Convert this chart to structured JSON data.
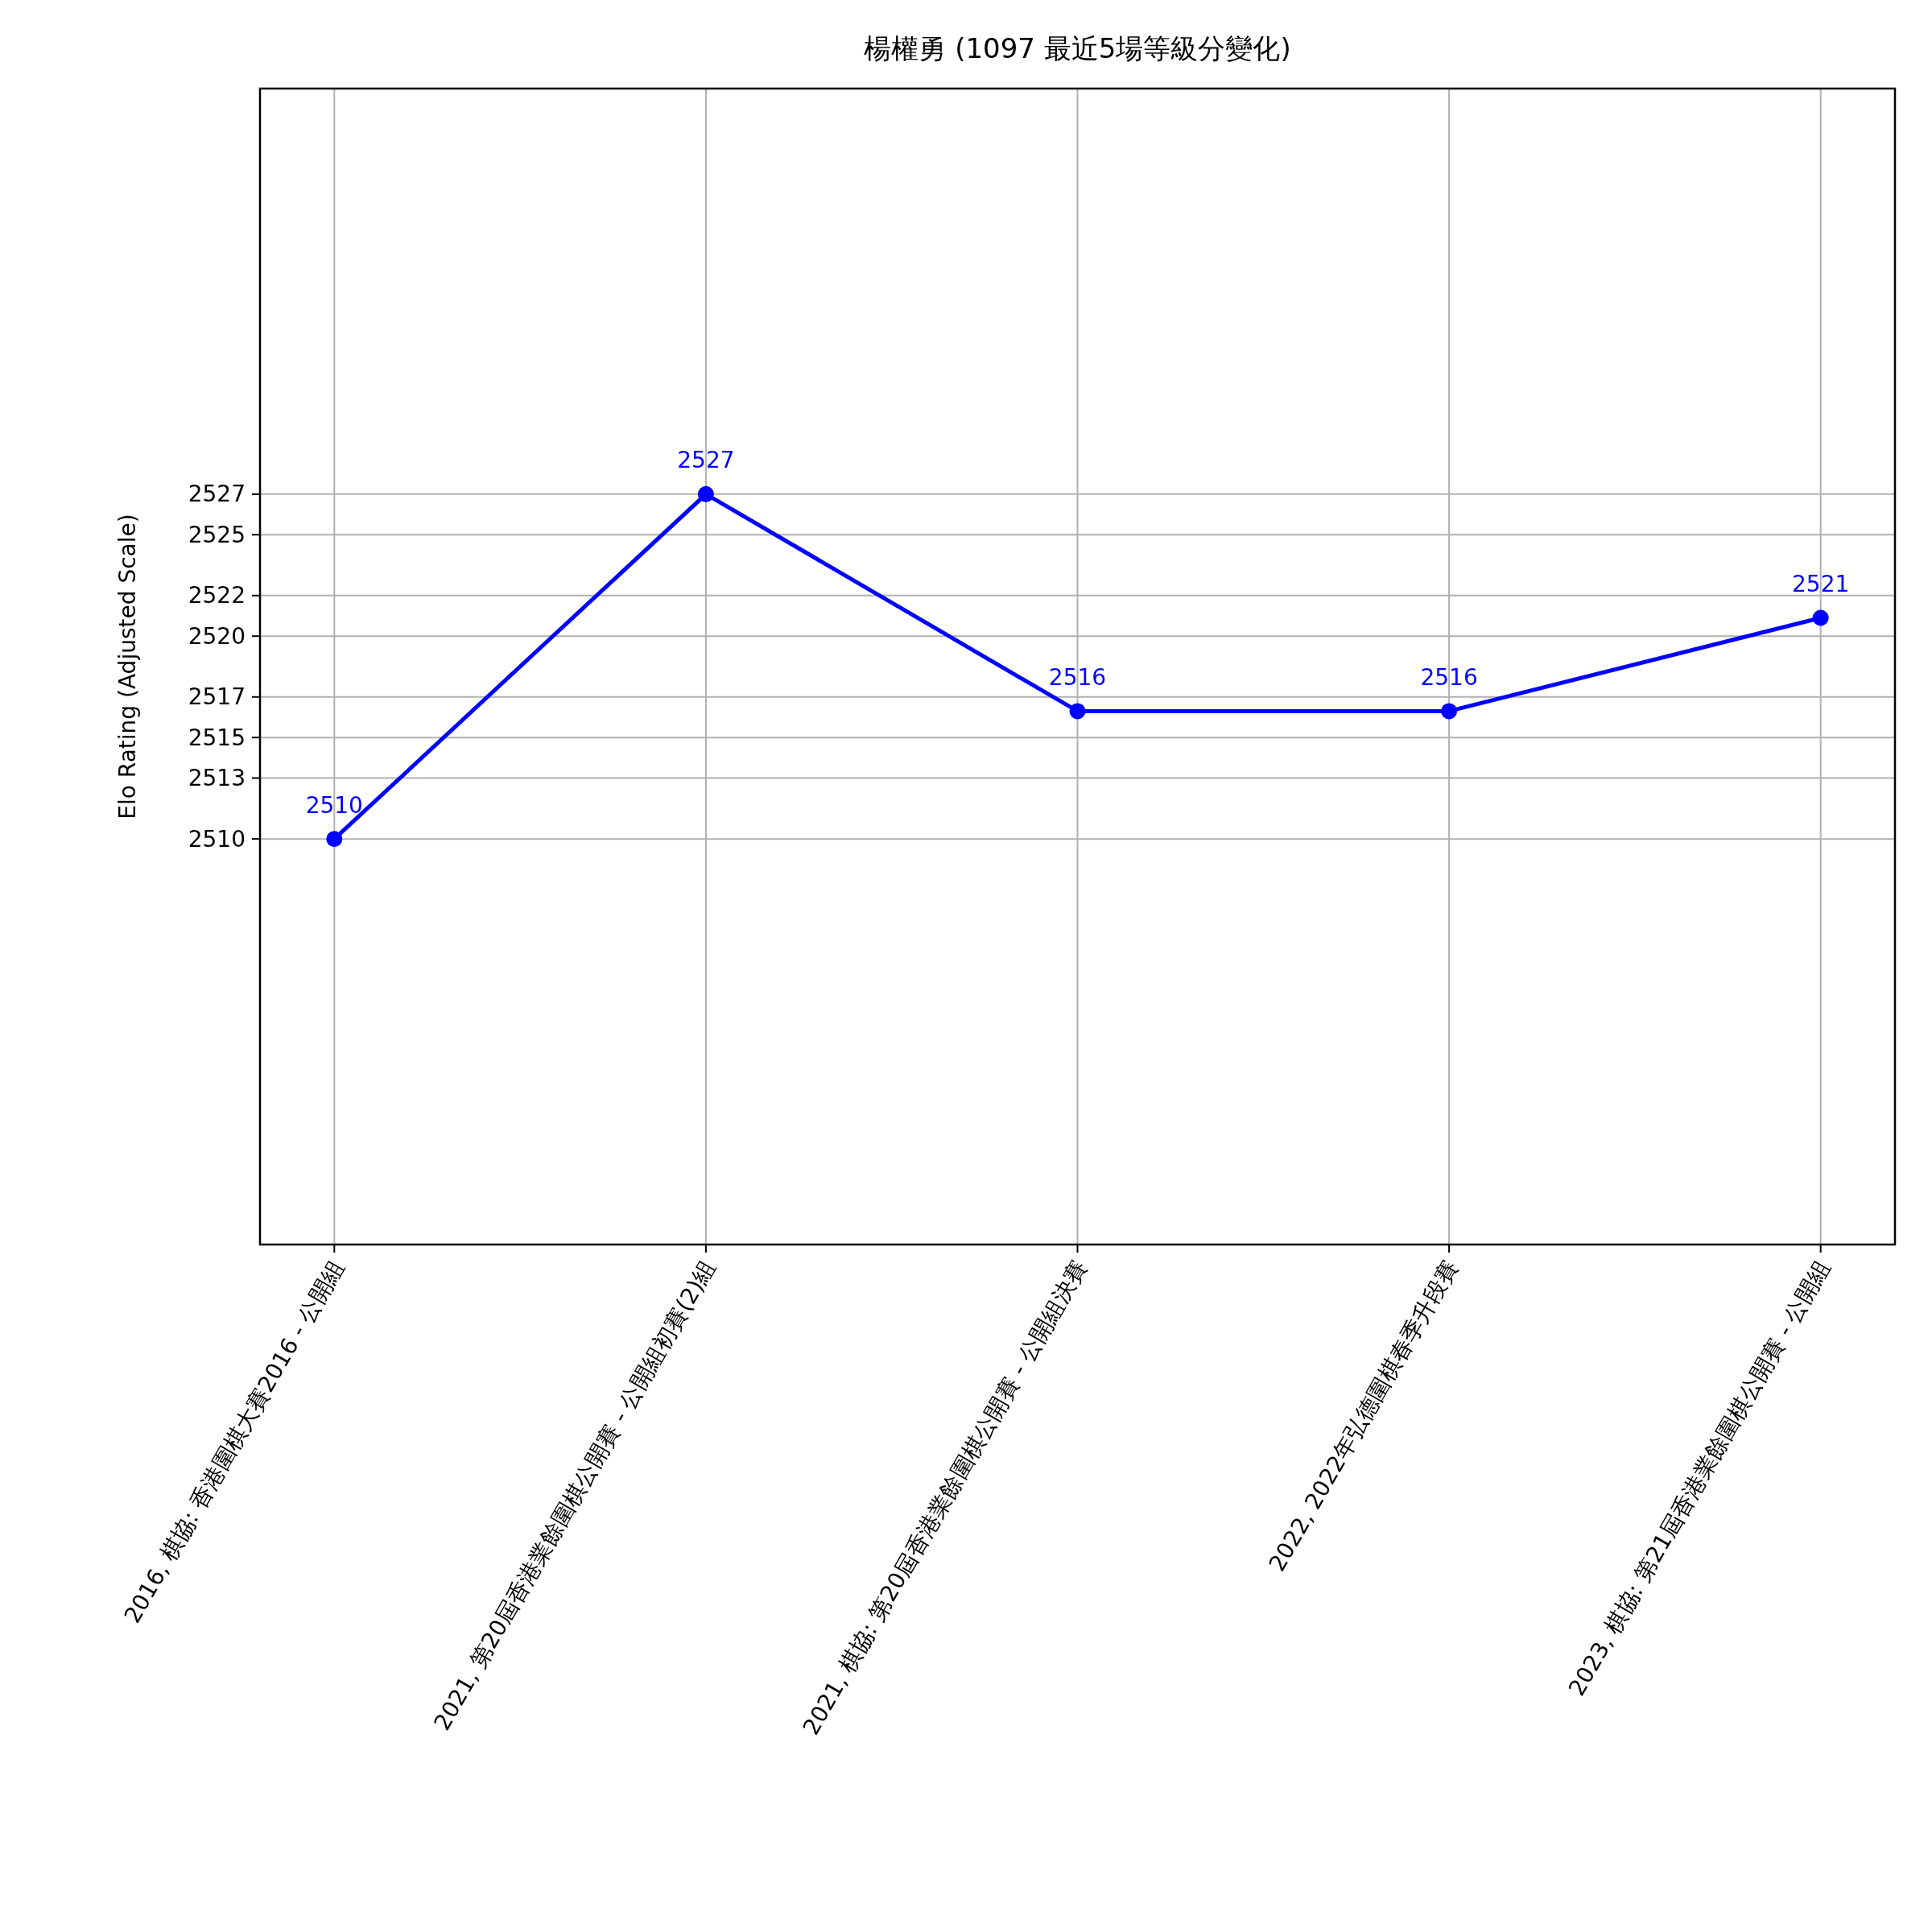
{
  "chart_data": {
    "type": "line",
    "title": "楊權勇 (1097 最近5場等級分變化)",
    "ylabel": "Elo Rating (Adjusted Scale)",
    "categories": [
      "2016, 棋協: 香港圍棋大賽2016 - 公開組",
      "2021, 第20屆香港業餘圍棋公開賽 - 公開組初賽(2)組",
      "2021, 棋協: 第20屆香港業餘圍棋公開賽 - 公開組決賽",
      "2022, 2022年弘德圍棋春季升段賽",
      "2023, 棋協: 第21屆香港業餘圍棋公開賽 - 公開組"
    ],
    "series": [
      {
        "color": "#0000ff",
        "values": [
          2510,
          2527,
          2516.3,
          2516.3,
          2520.9
        ],
        "value_labels": [
          "2510",
          "2527",
          "2516",
          "2516",
          "2521"
        ]
      }
    ],
    "ylim": [
      2490,
      2547
    ],
    "yticks": [
      2510,
      2513,
      2515,
      2517,
      2520,
      2522,
      2525,
      2527
    ],
    "grid": true,
    "marker": "circle",
    "line_style": "solid"
  }
}
